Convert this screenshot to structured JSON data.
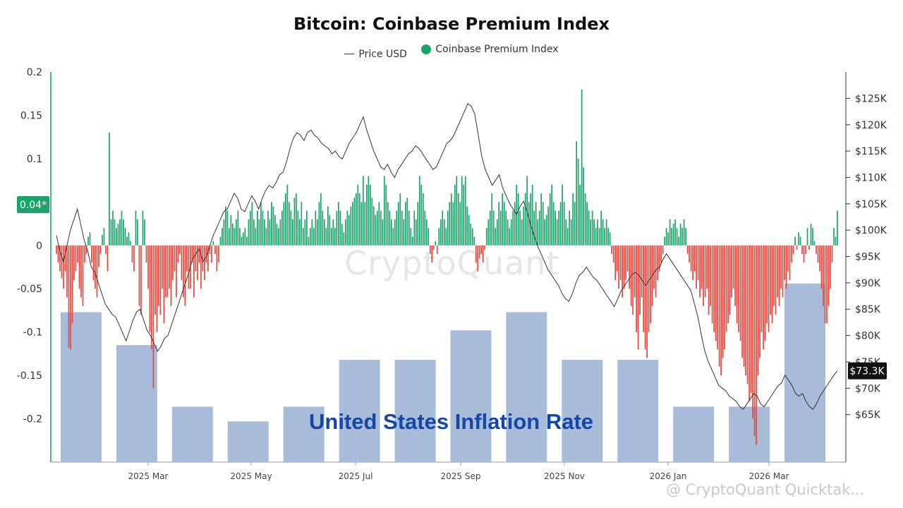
{
  "chart_data": {
    "type": "bar",
    "title": "Bitcoin: Coinbase Premium Index",
    "legend": [
      {
        "name": "Price USD",
        "style": "line",
        "color": "#333333"
      },
      {
        "name": "Coinbase Premium Index",
        "style": "dot",
        "color": "#1aa36b"
      }
    ],
    "left_axis": {
      "ticks": [
        "0.2",
        "0.15",
        "0.1",
        "0.05",
        "0",
        "-0.05",
        "-0.1",
        "-0.15",
        "-0.2"
      ],
      "ylim": [
        -0.25,
        0.2
      ]
    },
    "right_axis": {
      "ticks": [
        "$125K",
        "$120K",
        "$115K",
        "$110K",
        "$105K",
        "$100K",
        "$95K",
        "$90K",
        "$85K",
        "$80K",
        "$75K",
        "$70K",
        "$65K"
      ],
      "ylim": [
        60000,
        128000
      ]
    },
    "x_ticks": [
      "2025 Mar",
      "2025 May",
      "2025 Jul",
      "2025 Sep",
      "2025 Nov",
      "2026 Jan",
      "2026 Mar"
    ],
    "current_premium_label": "0.04*",
    "current_price_label": "$73.3K",
    "inflation_bars": {
      "name": "United States Inflation Rate",
      "values": [
        -0.077,
        -0.115,
        -0.186,
        -0.203,
        -0.186,
        -0.132,
        -0.132,
        -0.098,
        -0.077,
        -0.132,
        -0.132,
        -0.186,
        -0.186,
        -0.044
      ]
    },
    "premium_series": {
      "positive_color": "#1aa36b",
      "negative_color": "#e5473d",
      "values": [
        -0.01,
        -0.02,
        -0.03,
        -0.038,
        -0.05,
        -0.03,
        -0.06,
        -0.118,
        -0.12,
        -0.09,
        -0.04,
        -0.03,
        -0.02,
        -0.05,
        -0.06,
        -0.07,
        -0.02,
        -0.01,
        0.01,
        0.015,
        -0.02,
        -0.04,
        -0.05,
        -0.06,
        -0.025,
        -0.01,
        0.012,
        0.02,
        -0.01,
        -0.03,
        0.13,
        0.03,
        0.04,
        0.03,
        0.02,
        0.025,
        0.03,
        0.04,
        0.03,
        0.02,
        0.01,
        0.015,
        0.005,
        -0.02,
        -0.03,
        0.04,
        0.03,
        -0.07,
        -0.08,
        0.04,
        0.03,
        -0.02,
        -0.05,
        -0.1,
        -0.12,
        -0.165,
        -0.08,
        -0.1,
        -0.07,
        -0.08,
        -0.05,
        -0.09,
        -0.06,
        -0.06,
        -0.05,
        -0.07,
        -0.04,
        -0.03,
        -0.06,
        -0.02,
        -0.01,
        -0.04,
        -0.06,
        -0.07,
        -0.03,
        -0.05,
        -0.05,
        -0.02,
        -0.06,
        -0.03,
        -0.04,
        -0.02,
        -0.05,
        -0.03,
        -0.04,
        -0.02,
        -0.03,
        -0.01,
        -0.02,
        0.005,
        -0.01,
        -0.03,
        -0.02,
        0.01,
        0.02,
        0.03,
        0.045,
        0.04,
        0.02,
        0.035,
        0.025,
        0.02,
        0.03,
        0.04,
        0.02,
        0.01,
        0.015,
        0.02,
        0.01,
        0.03,
        0.04,
        0.05,
        0.03,
        0.02,
        0.04,
        0.03,
        0.05,
        0.04,
        0.03,
        0.02,
        0.04,
        0.03,
        0.05,
        0.045,
        0.035,
        0.025,
        0.02,
        0.03,
        0.04,
        0.05,
        0.06,
        0.07,
        0.05,
        0.04,
        0.03,
        0.055,
        0.06,
        0.04,
        0.03,
        0.05,
        0.02,
        0.03,
        0.04,
        0.01,
        0.02,
        0.03,
        0.02,
        0.04,
        0.03,
        0.05,
        0.06,
        0.04,
        0.03,
        0.02,
        0.045,
        0.035,
        0.02,
        0.03,
        0.02,
        0.04,
        0.05,
        0.04,
        0.025,
        0.015,
        0.03,
        0.04,
        0.035,
        0.045,
        0.05,
        0.055,
        0.06,
        0.07,
        0.06,
        0.05,
        0.08,
        0.05,
        0.07,
        0.08,
        0.07,
        0.055,
        0.045,
        0.035,
        0.04,
        0.05,
        0.04,
        0.03,
        0.08,
        0.07,
        0.05,
        0.04,
        0.03,
        0.02,
        0.03,
        0.04,
        0.05,
        0.06,
        0.04,
        0.03,
        0.05,
        0.055,
        0.04,
        0.02,
        0.01,
        0.04,
        0.03,
        0.05,
        0.08,
        0.07,
        0.06,
        0.04,
        0.03,
        0.02,
        -0.01,
        -0.02,
        -0.005,
        0.005,
        -0.01,
        0.02,
        0.03,
        0.04,
        0.03,
        0.02,
        0.04,
        0.05,
        0.06,
        0.05,
        0.07,
        0.08,
        0.06,
        0.05,
        0.08,
        0.07,
        0.08,
        0.045,
        0.035,
        0.025,
        0.02,
        0.01,
        -0.02,
        -0.03,
        -0.015,
        -0.01,
        -0.02,
        -0.005,
        0.02,
        0.03,
        0.04,
        0.06,
        0.04,
        0.02,
        0.03,
        0.05,
        0.04,
        0.06,
        0.05,
        0.04,
        0.03,
        0.02,
        0.03,
        0.04,
        0.05,
        0.07,
        0.06,
        0.04,
        0.03,
        0.045,
        0.06,
        0.08,
        0.05,
        0.06,
        0.07,
        0.04,
        0.05,
        0.03,
        0.04,
        0.06,
        0.05,
        0.03,
        0.035,
        0.045,
        0.06,
        0.07,
        0.05,
        0.04,
        0.03,
        0.04,
        0.05,
        0.07,
        0.05,
        0.03,
        0.02,
        0.04,
        0.03,
        0.06,
        0.05,
        0.12,
        0.1,
        0.07,
        0.18,
        0.09,
        0.06,
        0.05,
        0.04,
        0.03,
        0.04,
        0.03,
        0.02,
        0.03,
        0.02,
        0.04,
        0.03,
        0.02,
        0.03,
        0.02,
        0.015,
        -0.01,
        -0.02,
        -0.04,
        -0.03,
        -0.05,
        -0.04,
        -0.06,
        -0.05,
        -0.04,
        -0.03,
        -0.05,
        -0.07,
        -0.08,
        -0.06,
        -0.1,
        -0.12,
        -0.08,
        -0.06,
        -0.1,
        -0.12,
        -0.13,
        -0.1,
        -0.09,
        -0.07,
        -0.05,
        -0.06,
        -0.04,
        -0.03,
        -0.02,
        -0.01,
        0.01,
        0.02,
        0.015,
        0.03,
        0.02,
        0.025,
        0.03,
        0.02,
        0.01,
        0.025,
        0.02,
        0.03,
        0.02,
        -0.01,
        -0.02,
        -0.03,
        -0.04,
        -0.03,
        -0.05,
        -0.04,
        -0.06,
        -0.05,
        -0.07,
        -0.06,
        -0.05,
        -0.08,
        -0.07,
        -0.09,
        -0.1,
        -0.11,
        -0.12,
        -0.14,
        -0.15,
        -0.13,
        -0.12,
        -0.1,
        -0.09,
        -0.08,
        -0.06,
        -0.05,
        -0.07,
        -0.09,
        -0.1,
        -0.11,
        -0.13,
        -0.14,
        -0.15,
        -0.16,
        -0.18,
        -0.17,
        -0.2,
        -0.22,
        -0.23,
        -0.15,
        -0.13,
        -0.1,
        -0.12,
        -0.11,
        -0.09,
        -0.1,
        -0.08,
        -0.09,
        -0.07,
        -0.08,
        -0.06,
        -0.07,
        -0.05,
        -0.06,
        -0.04,
        -0.05,
        -0.03,
        -0.04,
        -0.02,
        -0.01,
        0.01,
        -0.005,
        0.015,
        0.01,
        -0.01,
        -0.02,
        -0.01,
        0.02,
        -0.005,
        0.025,
        0.02,
        0.005,
        -0.01,
        -0.02,
        -0.03,
        -0.05,
        -0.07,
        -0.09,
        -0.09,
        -0.07,
        -0.05,
        -0.02,
        0.02,
        0.01,
        0.04
      ]
    },
    "price_series": {
      "color": "#333333",
      "values": [
        99000,
        96000,
        94000,
        97000,
        100000,
        102000,
        104000,
        101000,
        98000,
        96000,
        93000,
        92000,
        90000,
        88000,
        86000,
        85000,
        84000,
        83500,
        82000,
        80500,
        79000,
        81000,
        83000,
        84500,
        85000,
        83000,
        81000,
        80000,
        78500,
        77000,
        78000,
        79500,
        80000,
        82000,
        84000,
        86000,
        88000,
        90000,
        92000,
        94500,
        95500,
        96500,
        94000,
        95000,
        97000,
        99000,
        100500,
        102000,
        103500,
        104000,
        105500,
        107000,
        106000,
        104000,
        103500,
        105000,
        106500,
        105500,
        104000,
        106000,
        107500,
        108500,
        108000,
        109000,
        110500,
        111000,
        113000,
        115500,
        117500,
        118500,
        118000,
        117000,
        118500,
        119000,
        118000,
        117500,
        116500,
        116000,
        115500,
        114500,
        115000,
        114000,
        113500,
        115000,
        116500,
        117500,
        118500,
        120000,
        121500,
        119000,
        117000,
        115000,
        113500,
        112000,
        111500,
        112500,
        111000,
        110000,
        111500,
        112500,
        113500,
        114500,
        115000,
        116000,
        115500,
        114500,
        113500,
        112500,
        111500,
        112000,
        113500,
        115000,
        116500,
        117000,
        118000,
        119500,
        121000,
        122500,
        124000,
        123500,
        122000,
        118000,
        114000,
        111500,
        110000,
        108500,
        109500,
        110500,
        108000,
        106500,
        105000,
        104000,
        103000,
        104500,
        105500,
        103500,
        101000,
        99000,
        97000,
        95500,
        94000,
        92500,
        91500,
        90500,
        89500,
        88000,
        87000,
        86500,
        88000,
        90000,
        91500,
        92000,
        93000,
        92000,
        91000,
        90500,
        89500,
        88500,
        87500,
        86500,
        85500,
        87000,
        88500,
        89500,
        90500,
        91500,
        92000,
        91500,
        90500,
        89500,
        90500,
        91500,
        92500,
        93000,
        94500,
        95500,
        94500,
        93500,
        92500,
        91500,
        90500,
        89500,
        88500,
        86000,
        83500,
        80000,
        77000,
        75000,
        73500,
        72000,
        70500,
        70000,
        69500,
        68500,
        68000,
        67500,
        66500,
        66000,
        67000,
        68000,
        69000,
        68500,
        67000,
        66500,
        67500,
        68500,
        69500,
        70500,
        71000,
        72500,
        71500,
        70500,
        69000,
        68500,
        69000,
        67500,
        66500,
        66000,
        67000,
        68500,
        69500,
        70500,
        71500,
        72500,
        73300
      ]
    }
  },
  "footer_watermark": "@ CryptoQuant Quicktak..."
}
